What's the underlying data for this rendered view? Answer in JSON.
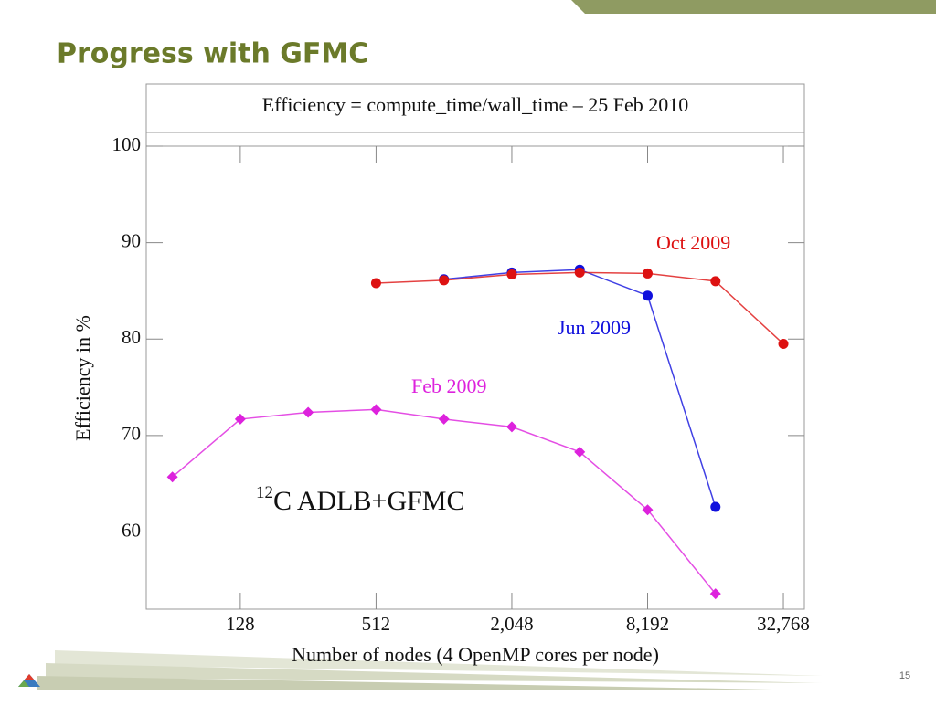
{
  "slide": {
    "title": "Progress with GFMC",
    "page_number": "15"
  },
  "chart_data": {
    "type": "line",
    "title": "Efficiency = compute_time/wall_time – 25 Feb 2010",
    "x_label": "Number of nodes (4 OpenMP cores per node)",
    "y_label": "Efficiency in %",
    "annotation": {
      "superscript": "12",
      "text": "C ADLB+GFMC"
    },
    "x": [
      64,
      128,
      256,
      512,
      1024,
      2048,
      4096,
      8192,
      16384,
      32768
    ],
    "x_scale": "log",
    "xlim": [
      49,
      40600
    ],
    "xticks": [
      128,
      512,
      {
        "value": 2048,
        "label": "2,048"
      },
      {
        "value": 8192,
        "label": "8,192"
      },
      {
        "value": 32768,
        "label": "32,768"
      }
    ],
    "ylim": [
      52,
      100
    ],
    "yticks": [
      60,
      70,
      80,
      90,
      100
    ],
    "grid": false,
    "series": [
      {
        "name": "Feb 2009",
        "color": "#dd22dd",
        "marker": "diamond",
        "values": [
          65.7,
          71.7,
          72.4,
          72.7,
          71.7,
          70.9,
          68.3,
          62.3,
          53.6,
          null
        ]
      },
      {
        "name": "Jun 2009",
        "color": "#1010dd",
        "marker": "circle",
        "values": [
          null,
          null,
          null,
          null,
          86.2,
          86.9,
          87.2,
          84.5,
          62.6,
          null
        ]
      },
      {
        "name": "Oct 2009",
        "color": "#dd1111",
        "marker": "circle",
        "values": [
          null,
          null,
          null,
          85.8,
          86.1,
          86.7,
          86.9,
          86.8,
          86.0,
          79.5
        ]
      }
    ]
  }
}
